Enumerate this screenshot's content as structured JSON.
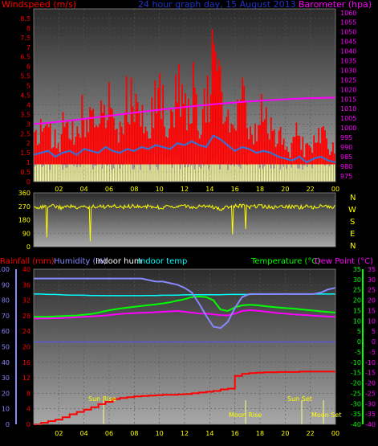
{
  "header": {
    "windspeed_label": "Windspeed (m/s)",
    "graph_title": "24 hour graph day, 15 August 2013",
    "barometer_label": "Barometer (hpa)"
  },
  "compass": {
    "n": "N",
    "w": "W",
    "s": "S",
    "e": "E",
    "n2": "N"
  },
  "bottom_header": {
    "rainfall": "Rainfall (mm)",
    "humidity": "Humidity (%)",
    "indoor_hum": "Indoor hum",
    "indoor_temp": "Indoor temp",
    "temperature": "Temperature (°C)",
    "dew_point": "Dew Point (°C)"
  },
  "events": {
    "sun_rise": "Sun Rise",
    "moon_rise": "Moon Rise",
    "sun_set": "Sun Set",
    "moon_set": "Moon Set"
  },
  "colors": {
    "windspeed": "#ff0000",
    "gust_band": "#ffff88",
    "avg_wind": "#3a6fcf",
    "barometer": "#ff00ff",
    "direction": "#ffff00",
    "rainfall": "#ff0000",
    "humidity": "#8888ff",
    "indoor_hum": "#5555ff",
    "indoor_temp": "#00ffff",
    "temperature": "#00ff00",
    "dew_point": "#ff00ff"
  },
  "chart_data": [
    {
      "type": "line",
      "x_ticks": [
        "02",
        "04",
        "06",
        "08",
        "10",
        "12",
        "14",
        "16",
        "18",
        "20",
        "22",
        "00"
      ],
      "y_left_ticks": [
        "0",
        "0.5",
        "1",
        "1.5",
        "2",
        "2.5",
        "3",
        "3.5",
        "4",
        "4.5",
        "5",
        "5.5",
        "6",
        "6.5",
        "7",
        "7.5",
        "8",
        "8.5"
      ],
      "y_right_ticks": [
        "975",
        "980",
        "985",
        "990",
        "995",
        "1000",
        "1005",
        "1010",
        "1015",
        "1020",
        "1025",
        "1030",
        "1035",
        "1040",
        "1045",
        "1050",
        "1055",
        "1060"
      ],
      "ylim_left": [
        0,
        9
      ],
      "ylim_right": [
        972,
        1062
      ],
      "windspeed_envelope": [
        2.5,
        3.3,
        4.0,
        2.8,
        3.6,
        4.5,
        3.0,
        5.0,
        4.2,
        3.5,
        5.8,
        4.0,
        3.8,
        6.2,
        5.0,
        4.6,
        3.9,
        6.5,
        5.2,
        4.8,
        7.0,
        5.5,
        6.3,
        5.0,
        4.7,
        8.8,
        6.0,
        4.2,
        3.5,
        5.5,
        4.0,
        3.2,
        4.8,
        3.6,
        3.0,
        2.6,
        2.4,
        3.5,
        2.0,
        2.8,
        3.0,
        2.5,
        2.3
      ],
      "avg_wind": [
        1.4,
        1.5,
        1.6,
        1.3,
        1.5,
        1.6,
        1.4,
        1.7,
        1.6,
        1.5,
        1.8,
        1.6,
        1.5,
        1.7,
        1.6,
        1.8,
        1.7,
        1.9,
        1.8,
        1.7,
        2.0,
        1.9,
        2.1,
        1.9,
        1.8,
        2.4,
        2.2,
        1.9,
        1.6,
        1.8,
        1.7,
        1.5,
        1.6,
        1.5,
        1.3,
        1.2,
        1.1,
        1.3,
        1.0,
        1.2,
        1.3,
        1.1,
        1.0
      ],
      "barometer": [
        1002,
        1002.3,
        1002.6,
        1003,
        1003.4,
        1003.8,
        1004.2,
        1004.7,
        1005.1,
        1005.6,
        1006,
        1006.5,
        1007,
        1007.4,
        1007.9,
        1008.3,
        1008.8,
        1009.2,
        1009.6,
        1010,
        1010.4,
        1010.8,
        1011.2,
        1011.6,
        1011.9,
        1012.3,
        1012.6,
        1012.9,
        1013.2,
        1013.5,
        1013.8,
        1014,
        1014.3,
        1014.5,
        1014.7,
        1014.9,
        1015.1,
        1015.3,
        1015.4,
        1015.5,
        1015.6,
        1015.7,
        1015.8
      ]
    },
    {
      "type": "line",
      "y_ticks": [
        "360",
        "270",
        "180",
        "90",
        "0"
      ],
      "ylim": [
        0,
        360
      ],
      "direction": [
        270,
        262,
        275,
        268,
        258,
        272,
        265,
        270,
        260,
        278,
        266,
        271,
        263,
        268,
        274,
        262,
        270,
        265,
        259,
        273,
        267,
        270,
        261,
        266,
        272,
        264,
        245,
        268,
        270,
        275,
        263,
        269,
        271,
        266,
        260,
        270,
        268,
        262,
        273,
        265,
        270,
        267,
        262
      ]
    },
    {
      "type": "line",
      "x_ticks": [
        "02",
        "04",
        "06",
        "08",
        "10",
        "12",
        "14",
        "16",
        "18",
        "20",
        "22",
        "00"
      ],
      "y_rain_ticks": [
        "0",
        "4",
        "8",
        "12",
        "16",
        "20",
        "24",
        "28",
        "32",
        "36",
        "40"
      ],
      "y_hum_ticks": [
        "0",
        "10",
        "20",
        "30",
        "40",
        "50",
        "60",
        "70",
        "80",
        "90",
        "100"
      ],
      "y_temp_ticks": [
        "35",
        "30",
        "25",
        "20",
        "15",
        "10",
        "5",
        "0",
        "-5",
        "-10",
        "-15",
        "-20",
        "-25",
        "-30",
        "-35",
        "-40"
      ],
      "ylim_rain": [
        0,
        40
      ],
      "ylim_hum": [
        0,
        100
      ],
      "ylim_temp": [
        -40,
        35
      ],
      "rainfall": [
        0,
        0.4,
        0.8,
        1.2,
        1.8,
        2.6,
        3.2,
        3.8,
        4.4,
        5.2,
        5.8,
        6.5,
        6.8,
        7.0,
        7.2,
        7.3,
        7.4,
        7.5,
        7.6,
        7.6,
        7.7,
        7.8,
        8.0,
        8.2,
        8.4,
        8.6,
        9.0,
        9.2,
        12.5,
        13.0,
        13.2,
        13.3,
        13.4,
        13.4,
        13.5,
        13.5,
        13.5,
        13.6,
        13.6,
        13.6,
        13.6,
        13.6,
        13.6
      ],
      "humidity": [
        94,
        94,
        94,
        94,
        94,
        94,
        94,
        94,
        94,
        94,
        94,
        94,
        94,
        94,
        94,
        94,
        93,
        92,
        92,
        91,
        90,
        88,
        85,
        78,
        70,
        63,
        62,
        66,
        75,
        82,
        84,
        84,
        84,
        84,
        84,
        84,
        84,
        84,
        84,
        84,
        85,
        87,
        88
      ],
      "indoor_hum": [
        53,
        53,
        53,
        53,
        53,
        53,
        53,
        53,
        53,
        53,
        53,
        53,
        53,
        53,
        53,
        53,
        53,
        53,
        53,
        53,
        53,
        53,
        53,
        53,
        53,
        53,
        53,
        53,
        53,
        53,
        53,
        53,
        53,
        53,
        53,
        53,
        53,
        53,
        53,
        53,
        53,
        53,
        53
      ],
      "indoor_temp": [
        23,
        23,
        22.8,
        22.8,
        22.6,
        22.5,
        22.5,
        22.4,
        22.3,
        22.3,
        22.2,
        22.2,
        22.2,
        22.2,
        22.2,
        22.2,
        22.3,
        22.3,
        22.4,
        22.4,
        22.5,
        22.6,
        22.7,
        22.7,
        22.7,
        22.7,
        22.7,
        22.8,
        22.8,
        22.8,
        22.8,
        22.9,
        22.9,
        22.9,
        23,
        23,
        23,
        23,
        23,
        23,
        23,
        23,
        23
      ],
      "temperature": [
        12,
        12,
        12,
        12.2,
        12.3,
        12.5,
        12.6,
        13,
        13.3,
        14,
        14.8,
        15.4,
        16,
        16.4,
        16.8,
        17.2,
        17.6,
        18,
        18.5,
        19,
        19.8,
        20.5,
        21.5,
        21.8,
        21.5,
        20,
        15.5,
        14.8,
        16.5,
        17.5,
        17.8,
        17.6,
        17.2,
        16.8,
        16.5,
        16.2,
        16,
        15.6,
        15.3,
        15,
        14.6,
        14.3,
        14
      ],
      "dew_point": [
        11.2,
        11.2,
        11.3,
        11.3,
        11.4,
        11.6,
        11.8,
        12,
        12.2,
        12.4,
        12.6,
        13,
        13.3,
        13.6,
        13.8,
        13.9,
        14,
        14.2,
        14.4,
        14.6,
        14.8,
        14.4,
        14,
        13.6,
        13.5,
        13.2,
        12.8,
        12.6,
        13.5,
        14.8,
        15.2,
        15,
        14.6,
        14.2,
        13.8,
        13.5,
        13.2,
        13,
        12.8,
        12.5,
        12.3,
        12.1,
        12
      ]
    }
  ]
}
